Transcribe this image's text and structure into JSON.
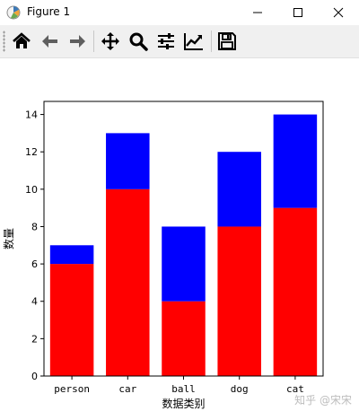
{
  "window": {
    "title": "Figure 1"
  },
  "toolbar": {
    "buttons": [
      {
        "name": "home",
        "icon": "home-icon"
      },
      {
        "name": "back",
        "icon": "arrow-left-icon"
      },
      {
        "name": "forward",
        "icon": "arrow-right-icon"
      },
      {
        "name": "pan",
        "icon": "move-icon"
      },
      {
        "name": "zoom",
        "icon": "magnifier-icon"
      },
      {
        "name": "configure-subplots",
        "icon": "sliders-icon"
      },
      {
        "name": "edit-axis",
        "icon": "trend-chart-icon"
      },
      {
        "name": "save",
        "icon": "floppy-disk-icon"
      }
    ]
  },
  "chart_data": {
    "type": "bar",
    "stacked": true,
    "categories": [
      "person",
      "car",
      "ball",
      "dog",
      "cat"
    ],
    "series": [
      {
        "values": [
          6,
          10,
          4,
          8,
          9
        ],
        "color": "#ff0000"
      },
      {
        "values": [
          1,
          3,
          4,
          4,
          5
        ],
        "color": "#0000ff"
      }
    ],
    "xlabel": "数据类别",
    "ylabel": "数量",
    "ylim": [
      0,
      14.7
    ],
    "yticks": [
      0,
      2,
      4,
      6,
      8,
      10,
      12,
      14
    ],
    "grid": false
  },
  "watermark": "知乎 @宋宋"
}
